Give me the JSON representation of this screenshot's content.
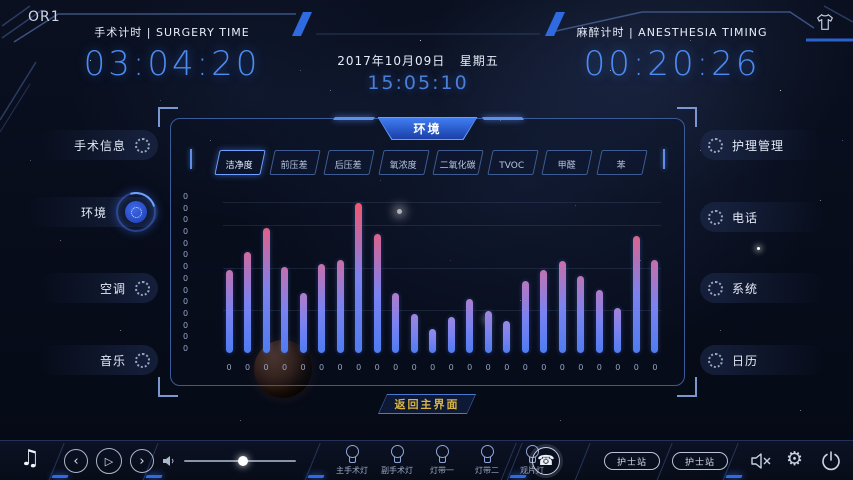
{
  "app": {
    "room": "OR1"
  },
  "header": {
    "surgery": {
      "label": "手术计时 | SURGERY TIME",
      "time": "03:04:20"
    },
    "datetime": {
      "date": "2017年10月09日",
      "weekday": "星期五",
      "time": "15:05:10"
    },
    "anesthesia": {
      "label": "麻醉计时 | ANESTHESIA TIMING",
      "time": "00:20:26"
    }
  },
  "sidebar_left": {
    "items": [
      {
        "label": "手术信息",
        "icon": "surgery-info-icon",
        "active": false
      },
      {
        "label": "环境",
        "icon": "environment-icon",
        "active": true
      },
      {
        "label": "空调",
        "icon": "air-conditioner-icon",
        "active": false
      },
      {
        "label": "音乐",
        "icon": "music-icon",
        "active": false
      }
    ]
  },
  "sidebar_right": {
    "items": [
      {
        "label": "护理管理",
        "icon": "nursing-management-icon"
      },
      {
        "label": "电话",
        "icon": "phone-icon"
      },
      {
        "label": "系统",
        "icon": "system-icon"
      },
      {
        "label": "日历",
        "icon": "calendar-icon"
      }
    ]
  },
  "panel": {
    "title": "环境",
    "tabs": [
      {
        "label": "洁净度",
        "active": true
      },
      {
        "label": "前压差",
        "active": false
      },
      {
        "label": "后压差",
        "active": false
      },
      {
        "label": "氧浓度",
        "active": false
      },
      {
        "label": "二氧化碳",
        "active": false
      },
      {
        "label": "TVOC",
        "active": false
      },
      {
        "label": "甲醛",
        "active": false
      },
      {
        "label": "苯",
        "active": false
      }
    ],
    "back_button": "返回主界面"
  },
  "chart_data": {
    "type": "bar",
    "title": "环境 - 洁净度",
    "categories": [
      "0",
      "0",
      "0",
      "0",
      "0",
      "0",
      "0",
      "0",
      "0",
      "0",
      "0",
      "0",
      "0",
      "0",
      "0",
      "0",
      "0",
      "0",
      "0",
      "0",
      "0",
      "0",
      "0",
      "0"
    ],
    "values": [
      55,
      67,
      83,
      57,
      40,
      59,
      62,
      100,
      79,
      40,
      26,
      16,
      24,
      36,
      28,
      21,
      48,
      55,
      61,
      51,
      42,
      30,
      78,
      62
    ],
    "y_tick_labels": [
      "0",
      "0",
      "0",
      "0",
      "0",
      "0",
      "0",
      "0",
      "0",
      "0",
      "0",
      "0",
      "0",
      "0"
    ],
    "xlabel": "",
    "ylabel": "",
    "ylim": [
      0,
      100
    ],
    "grid": true,
    "legend": false,
    "colors": {
      "bar_bottom": "#4f7cf2",
      "bar_mid": "#7b82f0",
      "bar_top_low": "#938cee",
      "bar_top_high": "#f4566d"
    }
  },
  "footer": {
    "music_glyph": "♫",
    "player": {
      "prev_glyph": "‹",
      "play_glyph": "▷",
      "next_glyph": "›"
    },
    "volume": {
      "level_percent": 53
    },
    "lights": [
      {
        "label": "主手术灯"
      },
      {
        "label": "副手术灯"
      },
      {
        "label": "灯带一"
      },
      {
        "label": "灯带二"
      },
      {
        "label": "观片灯"
      }
    ],
    "phone_glyph": "☎",
    "nurse_buttons": [
      {
        "label": "护士站"
      },
      {
        "label": "护士站"
      }
    ],
    "gear_glyph": "⚙"
  },
  "colors": {
    "accent_blue": "#2f6ae0",
    "timer_blue": "#4c8bf0",
    "back_btn_text": "#d9b545"
  }
}
